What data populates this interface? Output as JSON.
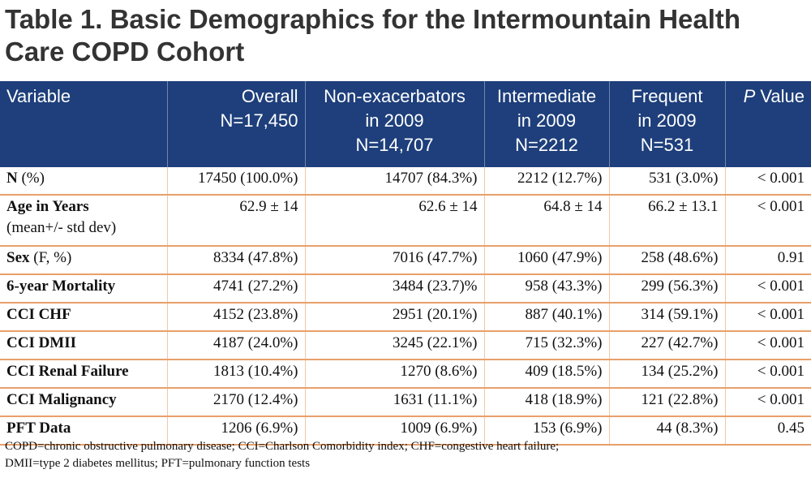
{
  "title": "Table 1. Basic Demographics for the Intermountain Health Care COPD Cohort",
  "header": {
    "variable": "Variable",
    "overall": [
      "Overall",
      "N=17,450"
    ],
    "non_exacerbators": [
      "Non-exacerbators",
      "in 2009",
      "N=14,707"
    ],
    "intermediate": [
      "Intermediate",
      "in 2009",
      "N=2212"
    ],
    "frequent": [
      "Frequent",
      "in 2009",
      "N=531"
    ],
    "p_value_italic": "P",
    "p_value_rest": " Value"
  },
  "rows": [
    {
      "label_bold": "N",
      "label_rest": " (%)",
      "overall": "17450 (100.0%)",
      "non_exacerbators": "14707 (84.3%)",
      "intermediate": "2212 (12.7%)",
      "frequent": "531 (3.0%)",
      "p_value": "< 0.001"
    },
    {
      "label_bold": "Age in Years",
      "label_sub": "(mean+/- std dev)",
      "overall": "62.9 ± 14",
      "non_exacerbators": "62.6 ± 14",
      "intermediate": "64.8 ± 14",
      "frequent": "66.2 ± 13.1",
      "p_value": "< 0.001"
    },
    {
      "label_bold": "Sex",
      "label_rest": " (F, %)",
      "overall": "8334 (47.8%)",
      "non_exacerbators": "7016 (47.7%)",
      "intermediate": "1060 (47.9%)",
      "frequent": "258 (48.6%)",
      "p_value": "0.91"
    },
    {
      "label_bold": "6-year Mortality",
      "overall": "4741 (27.2%)",
      "non_exacerbators": "3484 (23.7)%",
      "intermediate": "958 (43.3%)",
      "frequent": "299 (56.3%)",
      "p_value": "< 0.001"
    },
    {
      "label_bold": "CCI CHF",
      "overall": "4152 (23.8%)",
      "non_exacerbators": "2951 (20.1%)",
      "intermediate": "887 (40.1%)",
      "frequent": "314 (59.1%)",
      "p_value": "< 0.001"
    },
    {
      "label_bold": "CCI DMII",
      "overall": "4187 (24.0%)",
      "non_exacerbators": "3245 (22.1%)",
      "intermediate": "715 (32.3%)",
      "frequent": "227 (42.7%)",
      "p_value": "< 0.001"
    },
    {
      "label_bold": "CCI Renal Failure",
      "overall": "1813 (10.4%)",
      "non_exacerbators": "1270 (8.6%)",
      "intermediate": "409 (18.5%)",
      "frequent": "134 (25.2%)",
      "p_value": "< 0.001"
    },
    {
      "label_bold": "CCI Malignancy",
      "overall": "2170 (12.4%)",
      "non_exacerbators": "1631 (11.1%)",
      "intermediate": "418 (18.9%)",
      "frequent": "121 (22.8%)",
      "p_value": "< 0.001"
    },
    {
      "label_bold": "PFT Data",
      "overall": "1206 (6.9%)",
      "non_exacerbators": "1009 (6.9%)",
      "intermediate": "153 (6.9%)",
      "frequent": "44 (8.3%)",
      "p_value": "0.45"
    }
  ],
  "footnote": [
    "COPD=chronic obstructive pulmonary disease; CCI=Charlson Comorbidity index; CHF=congestive heart failure;",
    "DMII=type 2 diabetes mellitus; PFT=pulmonary function tests"
  ],
  "colors": {
    "header_bg": "#1e3f7b",
    "row_rule": "#e8a06a",
    "title_text": "#333333"
  }
}
